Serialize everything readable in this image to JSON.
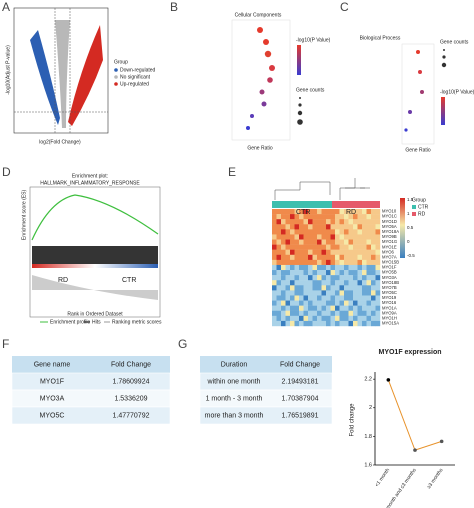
{
  "panels": {
    "a": {
      "label": "A",
      "x_axis": "log2(Fold Change)",
      "y_axis": "-log10(Adjust P-value)",
      "legend_title": "Group",
      "legend": [
        "Down-regulated",
        "No significant",
        "Up-regulated"
      ]
    },
    "b": {
      "label": "B",
      "title": "Cellular Components",
      "x_axis": "Gene Ratio",
      "legend_color": "-log10(P Value)",
      "legend_size": "Gene counts"
    },
    "c": {
      "label": "C",
      "title": "Biological Process",
      "x_axis": "Gene Ratio",
      "legend_size": "Gene counts",
      "legend_color": "-log10(P Value)"
    },
    "d": {
      "label": "D",
      "title": "Enrichment plot:",
      "subtitle": "HALLMARK_INFLAMMATORY_RESPONSE",
      "y_axis": "Enrichment score (ES)",
      "x_axis": "Rank in Ordered Dataset",
      "left_group": "RD",
      "right_group": "CTR",
      "legend": [
        "Enrichment profile",
        "Hits",
        "Ranking metric scores"
      ]
    },
    "e": {
      "label": "E",
      "groups": [
        "CTR",
        "RD"
      ],
      "legend_title": "Group",
      "legend": [
        "CTR",
        "RD"
      ],
      "scale": [
        "1.5",
        "1",
        "0.5",
        "0",
        "-0.5"
      ],
      "genes": [
        "MYO10",
        "MYO1C",
        "MYO1D",
        "MYO5A",
        "MYO18A",
        "MYO9B",
        "MYO1G",
        "MYO1E",
        "MYO6",
        "MYO7A",
        "MYO15B",
        "MYO1F",
        "MYO5B",
        "MYO3A",
        "MYO18B",
        "MYO7B",
        "MYO5C",
        "MYO19",
        "MYO16",
        "MYO1A",
        "MYO9A",
        "MYO1H",
        "MYO15A"
      ]
    },
    "f": {
      "label": "F",
      "table": {
        "header": [
          "Gene name",
          "Fold Change"
        ],
        "rows": [
          [
            "MYO1F",
            "1.78609924"
          ],
          [
            "MYO3A",
            "1.5336209"
          ],
          [
            "MYO5C",
            "1.47770792"
          ]
        ]
      }
    },
    "g": {
      "label": "G",
      "table": {
        "header": [
          "Duration",
          "Fold Change"
        ],
        "rows": [
          [
            "within one month",
            "2.19493181"
          ],
          [
            "1 month - 3 month",
            "1.70387904"
          ],
          [
            "more than 3 month",
            "1.76519891"
          ]
        ]
      }
    }
  },
  "chart_data": {
    "type": "line",
    "title": "MYO1F expression",
    "y_label": "Fold change",
    "categories": [
      "<1 month",
      "≥1 month and ≤3 months",
      "≥3 months"
    ],
    "series": [
      {
        "name": "MYO1F",
        "color": "#e8922a",
        "values": [
          2.19493181,
          1.70387904,
          1.76519891
        ]
      }
    ],
    "marker_colors": [
      "#000000",
      "#555555",
      "#555555"
    ],
    "ylim": [
      1.6,
      2.25
    ],
    "yticks": [
      1.6,
      1.8,
      2.0,
      2.2
    ]
  }
}
